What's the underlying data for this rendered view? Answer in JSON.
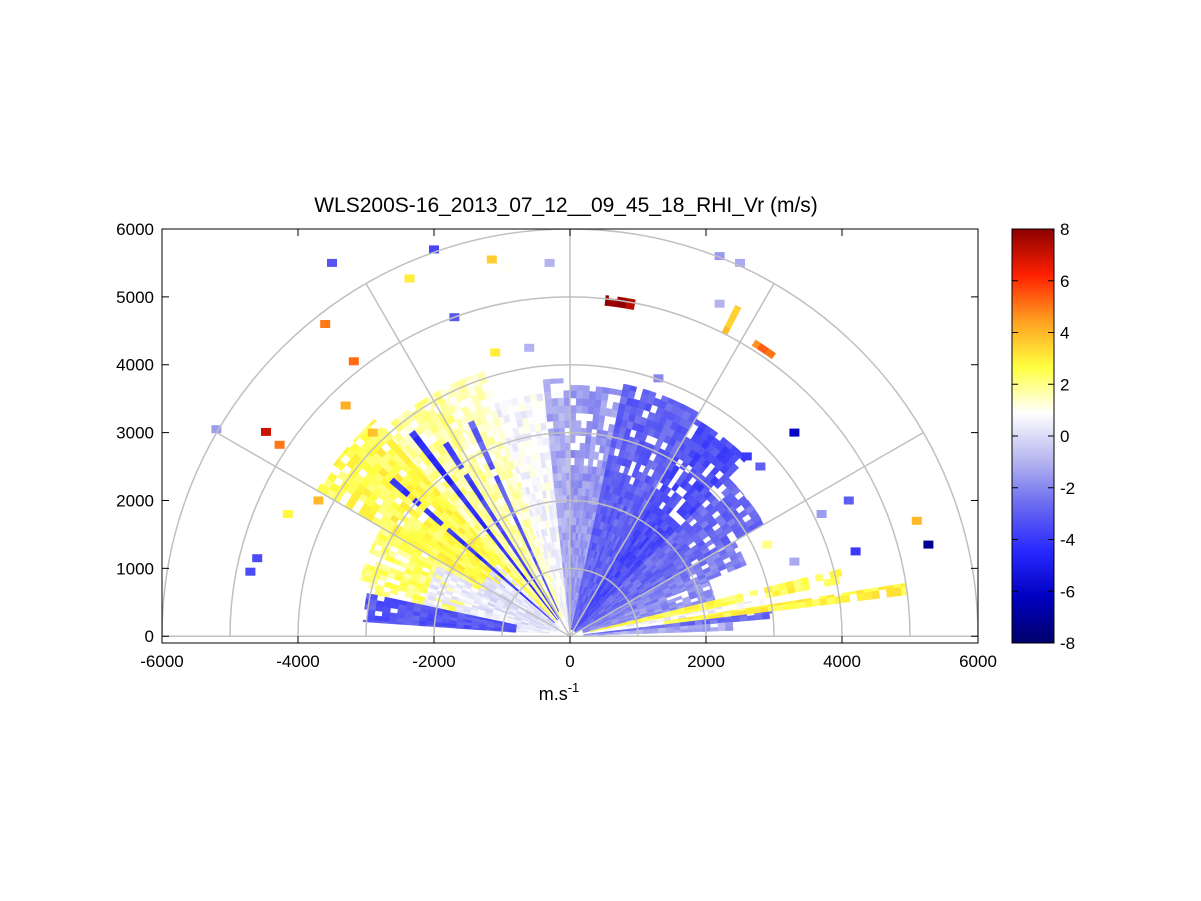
{
  "chart_data": {
    "type": "heatmap",
    "subtype": "polar RHI (range-height indicator) scan",
    "title": "WLS200S-16_2013_07_12__09_45_18_RHI_Vr (m/s)",
    "xlabel": "m.s",
    "xlabel_sup": "-1",
    "ylabel": "",
    "xlim": [
      -6000,
      6000
    ],
    "ylim": [
      -100,
      6000
    ],
    "xticks": [
      "-6000",
      "-4000",
      "-2000",
      "0",
      "2000",
      "4000",
      "6000"
    ],
    "xtick_values": [
      -6000,
      -4000,
      -2000,
      0,
      2000,
      4000,
      6000
    ],
    "yticks": [
      "0",
      "1000",
      "2000",
      "3000",
      "4000",
      "5000",
      "6000"
    ],
    "ytick_values": [
      0,
      1000,
      2000,
      3000,
      4000,
      5000,
      6000
    ],
    "polar_grid": {
      "range_rings": [
        1000,
        2000,
        3000,
        4000,
        5000,
        6000
      ],
      "angle_spokes_deg": [
        0,
        30,
        60,
        90,
        120,
        150,
        180
      ],
      "grid_color": "#c0c0c0"
    },
    "colorbar": {
      "label_ticks": [
        "8",
        "6",
        "4",
        "2",
        "0",
        "-2",
        "-4",
        "-6",
        "-8"
      ],
      "tick_values": [
        8,
        6,
        4,
        2,
        0,
        -2,
        -4,
        -6,
        -8
      ],
      "range": [
        -8,
        8
      ],
      "colormap": [
        "#00006a",
        "#0000c0",
        "#2828ff",
        "#6a6af0",
        "#b8b8f0",
        "#ffffff",
        "#ffff40",
        "#ffa020",
        "#ff2000",
        "#8b0000"
      ]
    },
    "sectors": [
      {
        "az_from": 150,
        "az_to": 168,
        "r_from": 300,
        "r_to": 3200,
        "vr": 2.2
      },
      {
        "az_from": 132,
        "az_to": 150,
        "r_from": 300,
        "r_to": 4300,
        "vr": 2.6
      },
      {
        "az_from": 118,
        "az_to": 132,
        "r_from": 400,
        "r_to": 4100,
        "vr": 1.8
      },
      {
        "az_from": 108,
        "az_to": 118,
        "r_from": 300,
        "r_to": 4100,
        "vr": 1.4
      },
      {
        "az_from": 92,
        "az_to": 108,
        "r_from": 200,
        "r_to": 3600,
        "vr": 0.7
      },
      {
        "az_from": 152,
        "az_to": 175,
        "r_from": 300,
        "r_to": 2200,
        "vr": 0.5
      },
      {
        "az_from": 135,
        "az_to": 165,
        "r_from": 200,
        "r_to": 1500,
        "vr": 0.2
      },
      {
        "az_from": 168,
        "az_to": 176,
        "r_from": 800,
        "r_to": 3050,
        "vr": -3.2
      },
      {
        "az_from": 138,
        "az_to": 139.5,
        "r_from": 300,
        "r_to": 3600,
        "vr": -4.0
      },
      {
        "az_from": 127,
        "az_to": 128.5,
        "r_from": 300,
        "r_to": 3800,
        "vr": -4.3
      },
      {
        "az_from": 122,
        "az_to": 123.5,
        "r_from": 300,
        "r_to": 3400,
        "vr": -3.6
      },
      {
        "az_from": 114,
        "az_to": 115.5,
        "r_from": 400,
        "r_to": 3600,
        "vr": -3.0
      },
      {
        "az_from": 90,
        "az_to": 96,
        "r_from": 100,
        "r_to": 3800,
        "vr": -1.2
      },
      {
        "az_from": 78,
        "az_to": 90,
        "r_from": 100,
        "r_to": 3700,
        "vr": -1.6
      },
      {
        "az_from": 60,
        "az_to": 78,
        "r_from": 100,
        "r_to": 3800,
        "vr": -2.9
      },
      {
        "az_from": 45,
        "az_to": 60,
        "r_from": 100,
        "r_to": 3700,
        "vr": -3.5
      },
      {
        "az_from": 30,
        "az_to": 45,
        "r_from": 100,
        "r_to": 3300,
        "vr": -2.7
      },
      {
        "az_from": 22,
        "az_to": 30,
        "r_from": 200,
        "r_to": 2800,
        "vr": -2.2
      },
      {
        "az_from": 14,
        "az_to": 22,
        "r_from": 200,
        "r_to": 2200,
        "vr": -1.8
      },
      {
        "az_from": 11,
        "az_to": 14,
        "r_from": 300,
        "r_to": 4100,
        "vr": 2.6
      },
      {
        "az_from": 9,
        "az_to": 11,
        "r_from": 300,
        "r_to": 2900,
        "vr": 0.6
      },
      {
        "az_from": 7,
        "az_to": 9,
        "r_from": 1400,
        "r_to": 5000,
        "vr": 2.8
      },
      {
        "az_from": 5,
        "az_to": 7,
        "r_from": 200,
        "r_to": 3000,
        "vr": -2.6
      },
      {
        "az_from": 2,
        "az_to": 5,
        "r_from": 200,
        "r_to": 2400,
        "vr": -1.2
      },
      {
        "az_from": 62.5,
        "az_to": 63.5,
        "r_from": 5000,
        "r_to": 5450,
        "vr": 3.8
      },
      {
        "az_from": 79,
        "az_to": 84,
        "r_from": 4900,
        "r_to": 5050,
        "vr": 7.6
      },
      {
        "az_from": 54,
        "az_to": 58,
        "r_from": 5050,
        "r_to": 5150,
        "vr": 5.0
      }
    ],
    "scatter_cells": [
      {
        "x": -4470,
        "y": 3010,
        "vr": 7.0
      },
      {
        "x": -4270,
        "y": 2820,
        "vr": 5.0
      },
      {
        "x": -3180,
        "y": 4050,
        "vr": 5.2
      },
      {
        "x": -3600,
        "y": 4600,
        "vr": 5.0
      },
      {
        "x": -3300,
        "y": 3400,
        "vr": 4.2
      },
      {
        "x": -2360,
        "y": 5270,
        "vr": 3.0
      },
      {
        "x": -1150,
        "y": 5550,
        "vr": 3.6
      },
      {
        "x": -1100,
        "y": 4180,
        "vr": 3.0
      },
      {
        "x": -920,
        "y": 5430,
        "vr": 1.0
      },
      {
        "x": -600,
        "y": 4250,
        "vr": -1.0
      },
      {
        "x": -2900,
        "y": 3000,
        "vr": 3.8
      },
      {
        "x": -3700,
        "y": 2000,
        "vr": 4.0
      },
      {
        "x": -4150,
        "y": 1800,
        "vr": 2.8
      },
      {
        "x": -5200,
        "y": 3050,
        "vr": -1.5
      },
      {
        "x": -3500,
        "y": 5500,
        "vr": -3.2
      },
      {
        "x": -2000,
        "y": 5700,
        "vr": -3.6
      },
      {
        "x": -1700,
        "y": 4700,
        "vr": -3.2
      },
      {
        "x": -300,
        "y": 5500,
        "vr": -1.0
      },
      {
        "x": 2200,
        "y": 5600,
        "vr": -1.6
      },
      {
        "x": 2500,
        "y": 5500,
        "vr": -1.2
      },
      {
        "x": 2200,
        "y": 4900,
        "vr": -1.0
      },
      {
        "x": 3300,
        "y": 3000,
        "vr": -6.0
      },
      {
        "x": 4100,
        "y": 2000,
        "vr": -3.0
      },
      {
        "x": 3700,
        "y": 1800,
        "vr": -1.5
      },
      {
        "x": 4200,
        "y": 1250,
        "vr": -4.0
      },
      {
        "x": 5100,
        "y": 1700,
        "vr": 4.0
      },
      {
        "x": 5270,
        "y": 1350,
        "vr": -7.2
      },
      {
        "x": 1300,
        "y": 3800,
        "vr": -2.0
      },
      {
        "x": 2600,
        "y": 2650,
        "vr": -4.0
      },
      {
        "x": 2800,
        "y": 2500,
        "vr": -3.0
      },
      {
        "x": 2900,
        "y": 1350,
        "vr": 2.0
      },
      {
        "x": 3300,
        "y": 1100,
        "vr": -1.2
      },
      {
        "x": -4600,
        "y": 1150,
        "vr": -3.5
      },
      {
        "x": -4700,
        "y": 950,
        "vr": -3.5
      }
    ]
  }
}
